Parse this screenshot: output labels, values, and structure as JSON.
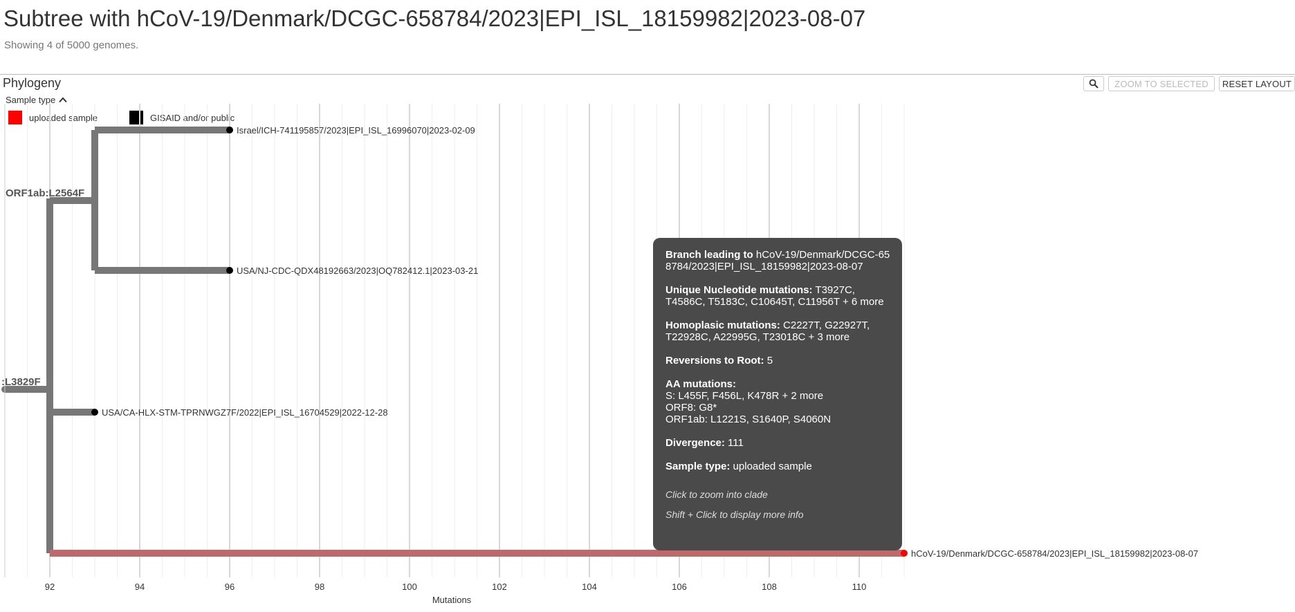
{
  "header": {
    "title": "Subtree with hCoV-19/Denmark/DCGC-658784/2023|EPI_ISL_18159982|2023-08-07",
    "subtitle": "Showing 4 of 5000 genomes."
  },
  "panel": {
    "title": "Phylogeny",
    "zoom_selected_label": "ZOOM TO SELECTED",
    "reset_layout_label": "RESET LAYOUT",
    "zoom_icon": "magnifier-icon"
  },
  "legend": {
    "title": "Sample type",
    "items": [
      {
        "label": "uploaded sample",
        "color": "#ff0000"
      },
      {
        "label": "GISAID and/or public",
        "color": "#000000"
      }
    ]
  },
  "tree": {
    "axis_label": "Mutations",
    "x_ticks": [
      92,
      94,
      96,
      98,
      100,
      102,
      104,
      106,
      108,
      110
    ],
    "branch_labels": [
      "ORF1ab:L2564F",
      ":L3829F"
    ],
    "branch_color": "#777777",
    "highlight_color": "#c0696b",
    "tips": [
      {
        "label": "Israel/ICH-741195857/2023|EPI_ISL_16996070|2023-02-09",
        "divergence": 96,
        "type": "GISAID and/or public"
      },
      {
        "label": "USA/NJ-CDC-QDX48192663/2023|OQ782412.1|2023-03-21",
        "divergence": 96,
        "type": "GISAID and/or public"
      },
      {
        "label": "USA/CA-HLX-STM-TPRNWGZ7F/2022|EPI_ISL_16704529|2022-12-28",
        "divergence": 93,
        "type": "GISAID and/or public"
      },
      {
        "label": "hCoV-19/Denmark/DCGC-658784/2023|EPI_ISL_18159982|2023-08-07",
        "divergence": 111,
        "type": "uploaded sample"
      }
    ]
  },
  "tooltip": {
    "branch_leading_label": "Branch leading to",
    "branch_leading_value": "hCoV-19/Denmark/DCGC-658784/2023|EPI_ISL_18159982|2023-08-07",
    "unique_nt_label": "Unique Nucleotide mutations:",
    "unique_nt_value": "T3927C, T4586C, T5183C, C10645T, C11956T + 6 more",
    "homoplasic_label": "Homoplasic mutations:",
    "homoplasic_value": "C2227T, G22927T, T22928C, A22995G, T23018C + 3 more",
    "reversions_label": "Reversions to Root:",
    "reversions_value": "5",
    "aa_label": "AA mutations:",
    "aa_lines": [
      "S:  L455F, F456L, K478R + 2 more",
      "ORF8:  G8*",
      "ORF1ab:  L1221S, S1640P, S4060N"
    ],
    "divergence_label": "Divergence:",
    "divergence_value": "111",
    "sample_type_label": "Sample type:",
    "sample_type_value": "uploaded sample",
    "hint_click": "Click to zoom into clade",
    "hint_shift": "Shift + Click to display more info"
  }
}
